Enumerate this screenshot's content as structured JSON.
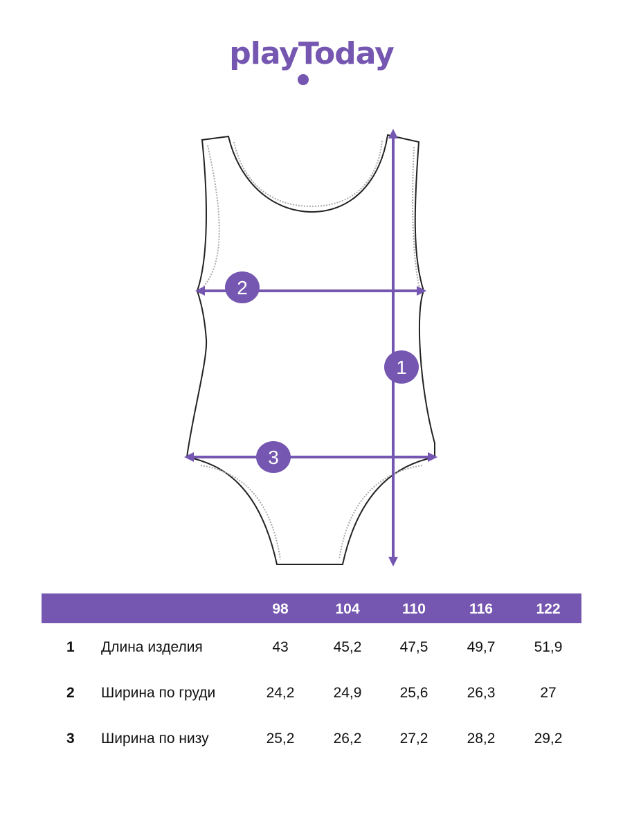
{
  "brand": {
    "logo_text": "playToday",
    "accent": "#7556b0"
  },
  "diagram": {
    "markers": [
      "1",
      "2",
      "3"
    ]
  },
  "table": {
    "sizes": [
      "98",
      "104",
      "110",
      "116",
      "122"
    ],
    "rows": [
      {
        "num": "1",
        "label": "Длина изделия",
        "values": [
          "43",
          "45,2",
          "47,5",
          "49,7",
          "51,9"
        ]
      },
      {
        "num": "2",
        "label": "Ширина по груди",
        "values": [
          "24,2",
          "24,9",
          "25,6",
          "26,3",
          "27"
        ]
      },
      {
        "num": "3",
        "label": "Ширина по низу",
        "values": [
          "25,2",
          "26,2",
          "27,2",
          "28,2",
          "29,2"
        ]
      }
    ]
  }
}
